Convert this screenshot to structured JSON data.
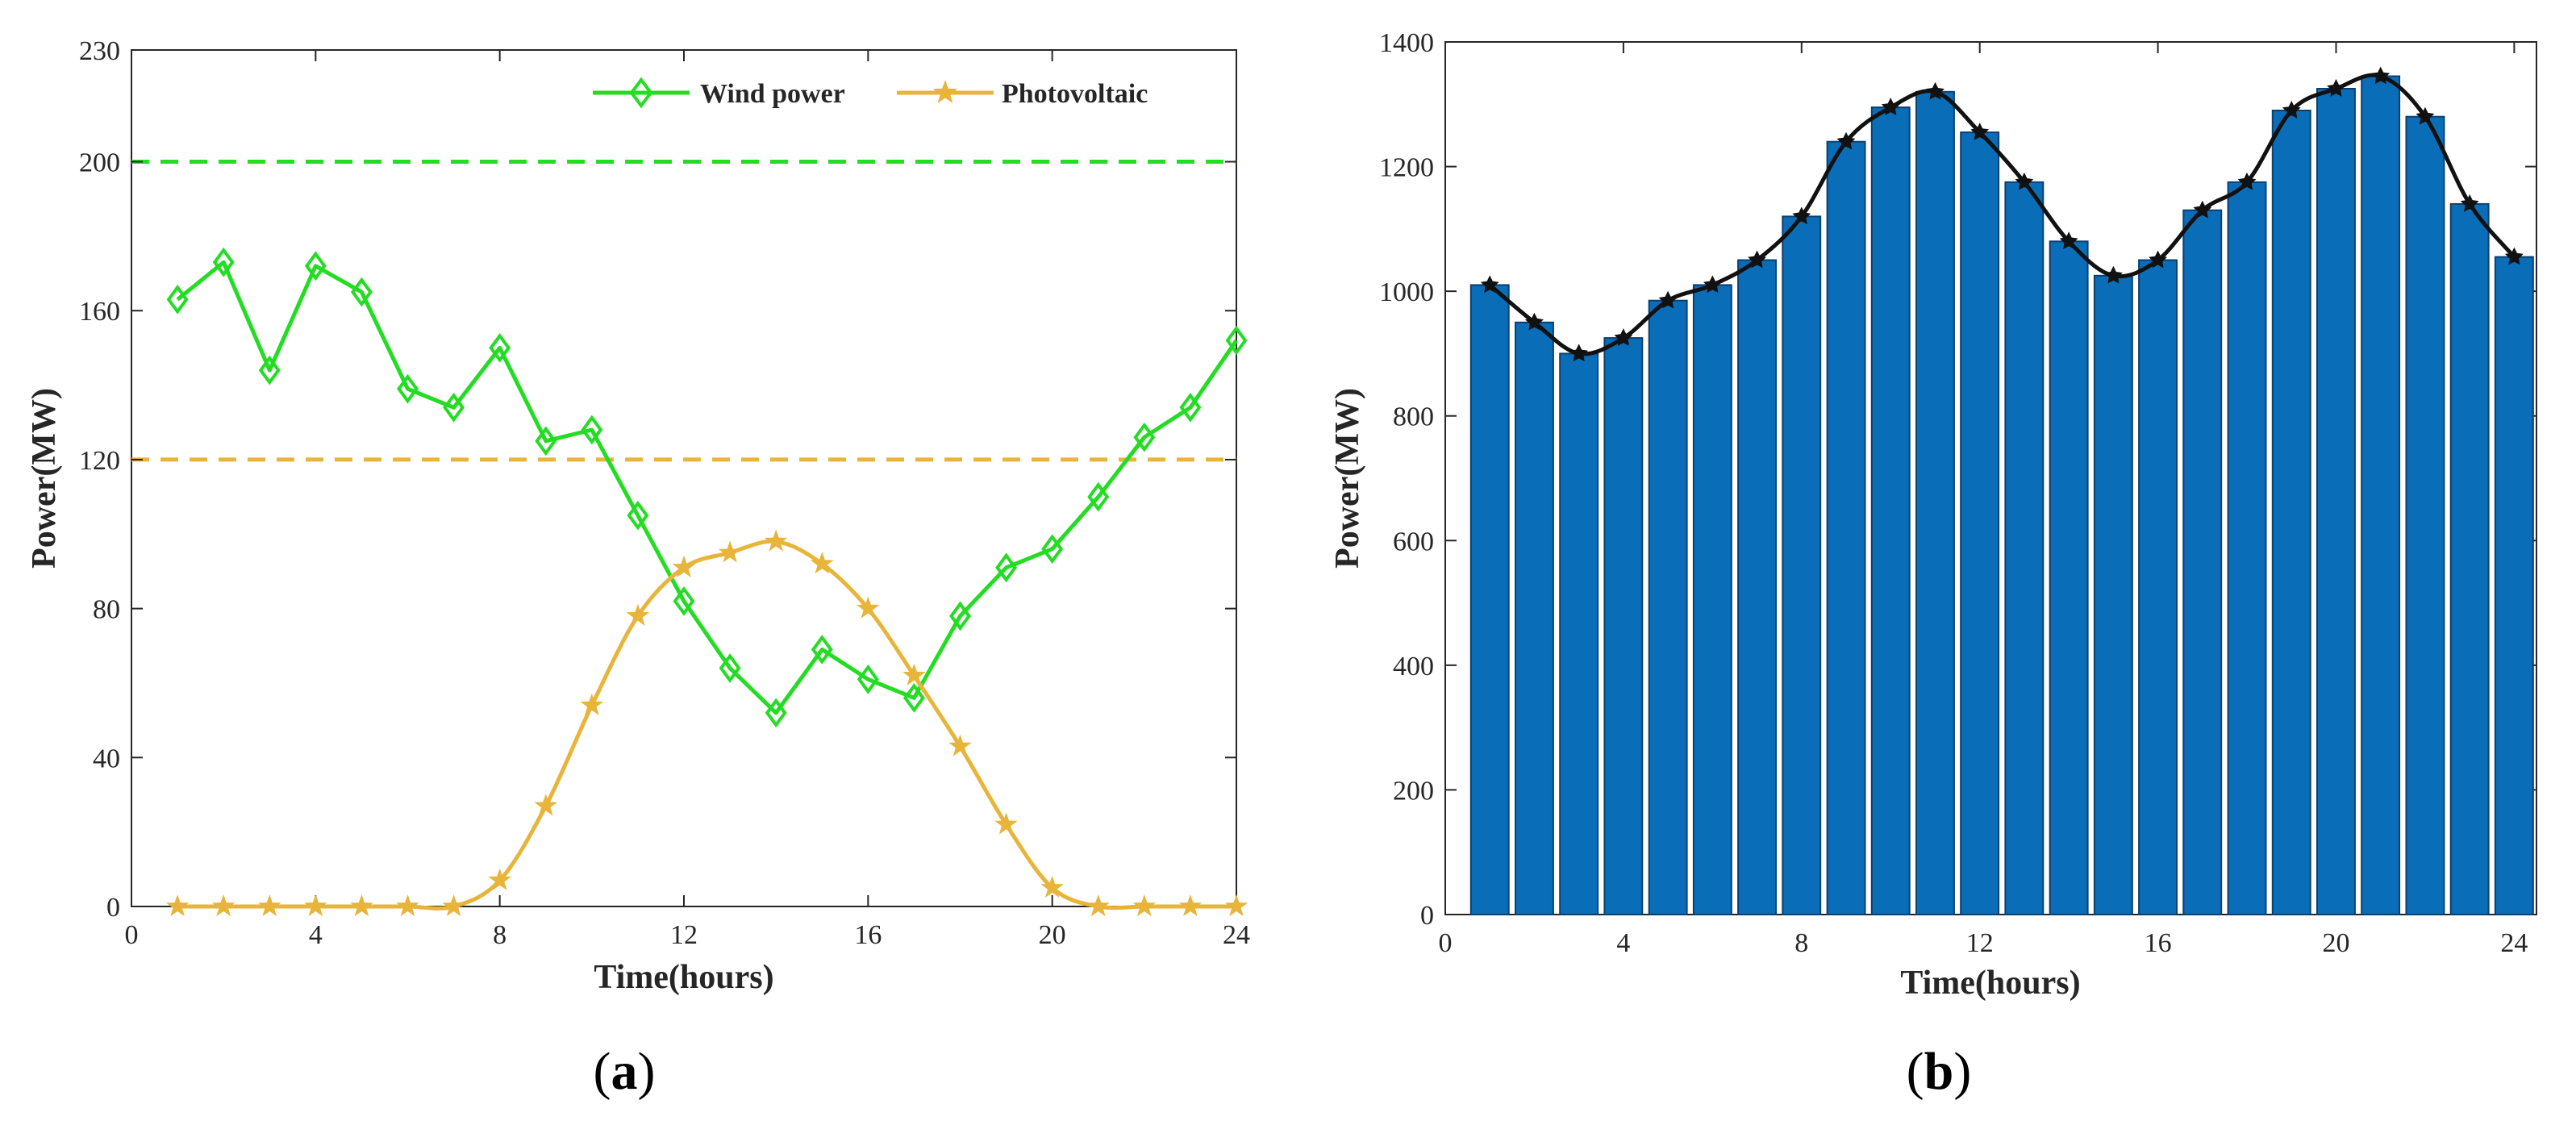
{
  "chart_data": [
    {
      "type": "line",
      "panel_label": "(a)",
      "panel_letter": "a",
      "xlabel": "Time(hours)",
      "ylabel": "Power(MW)",
      "xlim": [
        0,
        24
      ],
      "ylim": [
        0,
        230
      ],
      "xticks": [
        0,
        4,
        8,
        12,
        16,
        20,
        24
      ],
      "yticks": [
        0,
        40,
        80,
        120,
        160,
        200,
        230
      ],
      "grid": false,
      "legend_position": "top-right",
      "x": [
        1,
        2,
        3,
        4,
        5,
        6,
        7,
        8,
        9,
        10,
        11,
        12,
        13,
        14,
        15,
        16,
        17,
        18,
        19,
        20,
        21,
        22,
        23,
        24
      ],
      "series": [
        {
          "name": "Wind power",
          "color": "#22dd22",
          "marker": "diamond",
          "values": [
            163,
            173,
            144,
            172,
            165,
            139,
            134,
            150,
            125,
            128,
            105,
            82,
            64,
            52,
            69,
            61,
            56,
            78,
            91,
            96,
            110,
            126,
            134,
            152
          ]
        },
        {
          "name": "Photovoltaic",
          "color": "#e8b53a",
          "marker": "star",
          "values": [
            0,
            0,
            0,
            0,
            0,
            0,
            0,
            7,
            27,
            54,
            78,
            91,
            95,
            98,
            92,
            80,
            62,
            43,
            22,
            5,
            0,
            0,
            0,
            0
          ]
        }
      ],
      "reference_lines": [
        {
          "y": 200,
          "color": "#22dd22",
          "style": "dashed"
        },
        {
          "y": 120,
          "color": "#e8b53a",
          "style": "dashed"
        }
      ]
    },
    {
      "type": "bar",
      "panel_label": "(b)",
      "panel_letter": "b",
      "xlabel": "Time(hours)",
      "ylabel": "Power(MW)",
      "xlim": [
        0,
        24.5
      ],
      "ylim": [
        0,
        1400
      ],
      "xticks": [
        0,
        4,
        8,
        12,
        16,
        20,
        24
      ],
      "yticks": [
        0,
        200,
        400,
        600,
        800,
        1000,
        1200,
        1400
      ],
      "grid": false,
      "bar_color": "#0a6db8",
      "line_color": "#111111",
      "categories": [
        1,
        2,
        3,
        4,
        5,
        6,
        7,
        8,
        9,
        10,
        11,
        12,
        13,
        14,
        15,
        16,
        17,
        18,
        19,
        20,
        21,
        22,
        23,
        24
      ],
      "values": [
        1010,
        950,
        900,
        925,
        985,
        1010,
        1050,
        1120,
        1240,
        1295,
        1320,
        1255,
        1175,
        1080,
        1025,
        1050,
        1130,
        1175,
        1290,
        1325,
        1345,
        1280,
        1140,
        1055
      ]
    }
  ]
}
